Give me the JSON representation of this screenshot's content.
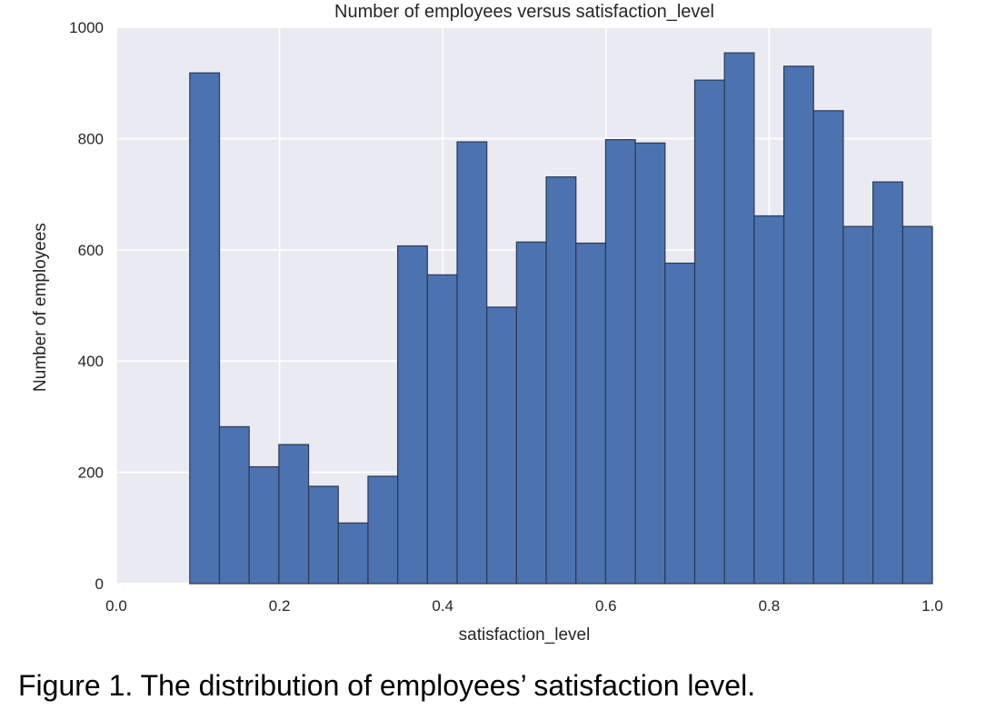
{
  "chart_data": {
    "type": "bar",
    "title": "Number of employees versus satisfaction_level",
    "xlabel": "satisfaction_level",
    "ylabel": "Number of employees",
    "xlim": [
      0.0,
      1.0
    ],
    "ylim": [
      0,
      1000
    ],
    "xticks": [
      "0.0",
      "0.2",
      "0.4",
      "0.6",
      "0.8",
      "1.0"
    ],
    "yticks": [
      "0",
      "200",
      "400",
      "600",
      "800",
      "1000"
    ],
    "grid": true,
    "bin_edges": [
      0.09,
      0.1264,
      0.1628,
      0.1992,
      0.2356,
      0.272,
      0.3084,
      0.3448,
      0.3812,
      0.4176,
      0.454,
      0.4904,
      0.5268,
      0.5632,
      0.5996,
      0.636,
      0.6724,
      0.7088,
      0.7452,
      0.7816,
      0.818,
      0.8544,
      0.8908,
      0.9272,
      0.9636,
      1.0
    ],
    "values": [
      918,
      282,
      210,
      250,
      175,
      109,
      193,
      607,
      555,
      794,
      497,
      614,
      731,
      612,
      798,
      792,
      576,
      905,
      954,
      661,
      930,
      850,
      642,
      722,
      642
    ],
    "colors": {
      "bar_fill": "#4c72b0",
      "bar_edge": "#2b3a52",
      "plot_background": "#eaeaf2",
      "grid": "#ffffff",
      "text": "#262626"
    }
  },
  "caption": "Figure 1. The distribution of employees’ satisfaction level."
}
